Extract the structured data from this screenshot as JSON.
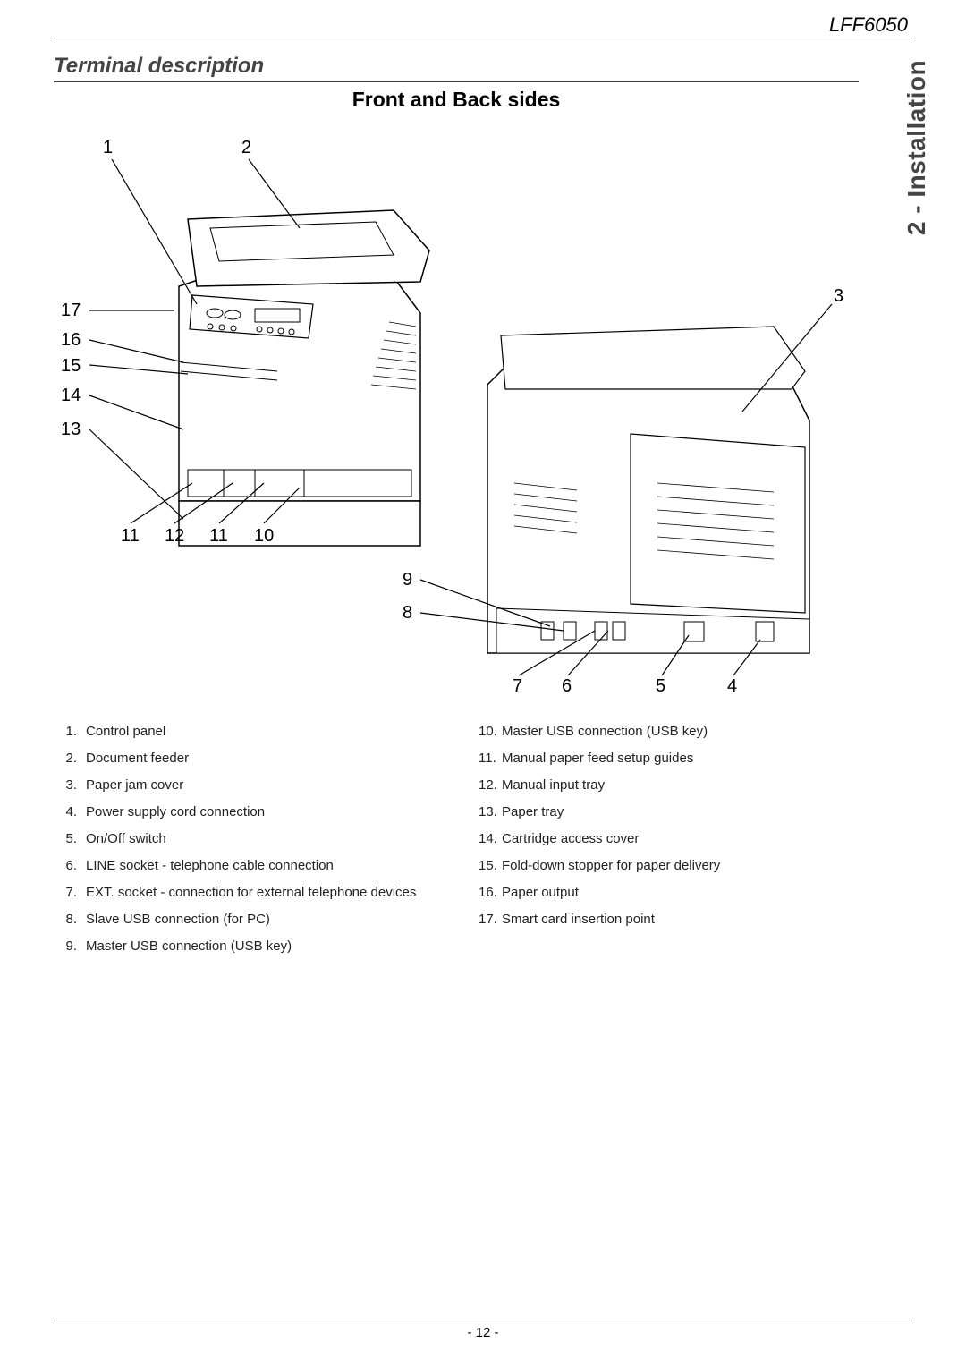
{
  "model": "LFF6050",
  "side_tab": "2 - Installation",
  "section_title": "Terminal description",
  "subtitle": "Front and Back sides",
  "page_number": "- 12 -",
  "callouts": {
    "front_top": [
      "1",
      "2"
    ],
    "front_left": [
      "17",
      "16",
      "15",
      "14",
      "13"
    ],
    "front_bottom": [
      "11",
      "12",
      "11",
      "10"
    ],
    "back_right_top": "3",
    "back_left": [
      "9",
      "8"
    ],
    "back_bottom": [
      "7",
      "6",
      "5",
      "4"
    ]
  },
  "legend_left": [
    {
      "n": "1.",
      "t": "Control panel"
    },
    {
      "n": "2.",
      "t": "Document feeder"
    },
    {
      "n": "3.",
      "t": "Paper jam cover"
    },
    {
      "n": "4.",
      "t": "Power supply cord connection"
    },
    {
      "n": "5.",
      "t": "On/Off switch"
    },
    {
      "n": "6.",
      "t": "LINE socket - telephone cable connection"
    },
    {
      "n": "7.",
      "t": "EXT. socket - connection for external telephone devices"
    },
    {
      "n": "8.",
      "t": "Slave USB connection (for PC)"
    },
    {
      "n": "9.",
      "t": "Master USB connection (USB key)"
    }
  ],
  "legend_right": [
    {
      "n": "10.",
      "t": "Master USB connection (USB key)"
    },
    {
      "n": "11.",
      "t": "Manual paper feed setup guides"
    },
    {
      "n": "12.",
      "t": "Manual input tray"
    },
    {
      "n": "13.",
      "t": "Paper tray"
    },
    {
      "n": "14.",
      "t": "Cartridge access cover"
    },
    {
      "n": "15.",
      "t": "Fold-down stopper for paper delivery"
    },
    {
      "n": "16.",
      "t": "Paper output"
    },
    {
      "n": "17.",
      "t": "Smart card insertion point"
    }
  ],
  "colors": {
    "text": "#000000",
    "section": "#444444",
    "bg": "#ffffff"
  },
  "fontsize": {
    "model": 22,
    "side_tab": 28,
    "section": 24,
    "subtitle": 23,
    "callout": 20,
    "legend": 15,
    "pagenum": 15
  }
}
